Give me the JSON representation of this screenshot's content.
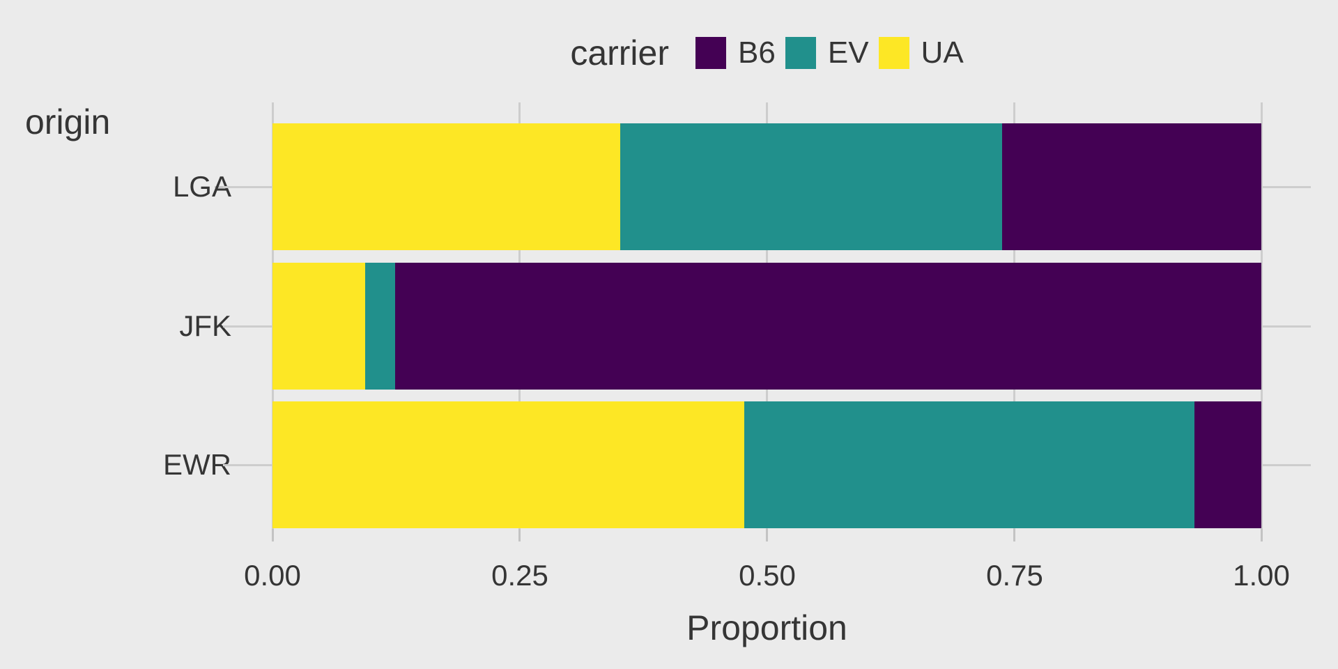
{
  "figure": {
    "background": "#ebebeb",
    "y_axis_title": "origin",
    "x_axis_title": "Proportion",
    "y_labels": [
      "LGA",
      "JFK",
      "EWR"
    ],
    "x_tick_labels": [
      "0.00",
      "0.25",
      "0.50",
      "0.75",
      "1.00"
    ]
  },
  "legend": {
    "title": "carrier",
    "items": [
      {
        "label": "B6",
        "color": "#440154"
      },
      {
        "label": "EV",
        "color": "#21908C"
      },
      {
        "label": "UA",
        "color": "#FDE725"
      }
    ]
  },
  "chart_data": {
    "type": "bar",
    "orientation": "horizontal",
    "stacked": true,
    "normalized": true,
    "title": "",
    "xlabel": "Proportion",
    "ylabel": "origin",
    "xlim": [
      0,
      1
    ],
    "x_ticks": [
      0,
      0.25,
      0.5,
      0.75,
      1
    ],
    "grid": true,
    "legend_position": "top-center",
    "categories": [
      "LGA",
      "JFK",
      "EWR"
    ],
    "series": [
      {
        "name": "UA",
        "color": "#FDE725",
        "values": [
          0.352,
          0.094,
          0.477
        ]
      },
      {
        "name": "EV",
        "color": "#21908C",
        "values": [
          0.386,
          0.03,
          0.455
        ]
      },
      {
        "name": "B6",
        "color": "#440154",
        "values": [
          0.262,
          0.876,
          0.068
        ]
      }
    ]
  }
}
